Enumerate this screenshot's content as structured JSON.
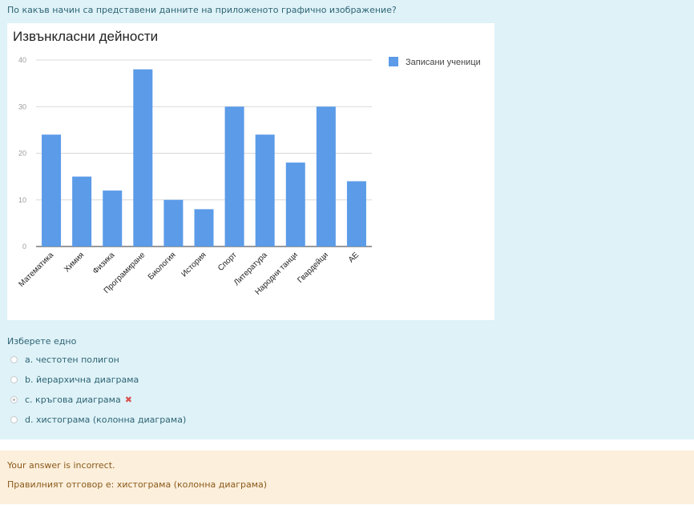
{
  "question": {
    "text": "По какъв начин са представени данните на приложеното графично изображение?",
    "prompt": "Изберете едно",
    "options": [
      {
        "letter": "a.",
        "text": "честотен полигон",
        "selected": false
      },
      {
        "letter": "b.",
        "text": "йерархична диаграма",
        "selected": false
      },
      {
        "letter": "c.",
        "text": "кръгова диаграма",
        "selected": true,
        "marked_incorrect": true
      },
      {
        "letter": "d.",
        "text": "хистограма (колонна диаграма)",
        "selected": false
      }
    ],
    "incorrect_icon": "cross-icon",
    "colors": {
      "panel_bg": "#def2f8",
      "text": "#2f6473",
      "incorrect": "#d9534f"
    }
  },
  "feedback": {
    "status": "Your answer is incorrect.",
    "correct_answer": "Правилният отговор е: хистограма (колонна диаграма)",
    "colors": {
      "panel_bg": "#fcefdc",
      "text": "#8a5a1a"
    }
  },
  "chart_data": {
    "type": "bar",
    "title": "Извънкласни дейности",
    "categories": [
      "Математика",
      "Химия",
      "Физика",
      "Програмиране",
      "Биология",
      "История",
      "Спорт",
      "Литература",
      "Народни танци",
      "Гвардейци",
      "АЕ"
    ],
    "series": [
      {
        "name": "Записани ученици",
        "values": [
          24,
          15,
          12,
          38,
          10,
          8,
          30,
          24,
          18,
          30,
          14
        ],
        "color": "#5b9be8"
      }
    ],
    "y_ticks": [
      "0",
      "10",
      "20",
      "30",
      "40"
    ],
    "ylim": [
      0,
      40
    ],
    "grid": true,
    "legend": "right"
  }
}
